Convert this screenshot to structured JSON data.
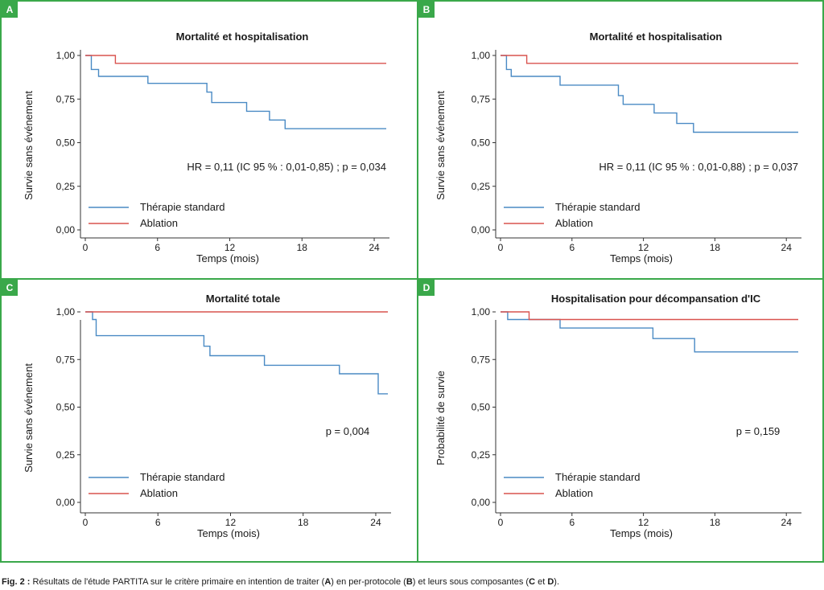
{
  "chart_data": [
    {
      "id": "A",
      "type": "line",
      "title": "Mortalité et hospitalisation",
      "xlabel": "Temps (mois)",
      "ylabel": "Survie sans événement",
      "xticks": [
        "0",
        "6",
        "12",
        "18",
        "24"
      ],
      "yticks": [
        "0,00",
        "0,25",
        "0,50",
        "0,75",
        "1,00"
      ],
      "xlim": [
        0,
        25
      ],
      "ylim": [
        0,
        1
      ],
      "annotation": "HR = 0,11 (IC 95 % : 0,01-0,85) ; p = 0,034",
      "series": [
        {
          "name": "Thérapie standard",
          "color": "#4a8ac4",
          "x": [
            0,
            0.5,
            0.5,
            1.1,
            1.1,
            5.2,
            5.2,
            10.1,
            10.1,
            10.5,
            10.5,
            13.4,
            13.4,
            15.3,
            15.3,
            16.6,
            16.6,
            25
          ],
          "y": [
            1,
            1,
            0.92,
            0.92,
            0.88,
            0.88,
            0.84,
            0.84,
            0.79,
            0.79,
            0.73,
            0.73,
            0.68,
            0.68,
            0.63,
            0.63,
            0.58,
            0.58
          ]
        },
        {
          "name": "Ablation",
          "color": "#d9534f",
          "x": [
            0,
            2.5,
            2.5,
            25
          ],
          "y": [
            1,
            1,
            0.955,
            0.955
          ]
        }
      ]
    },
    {
      "id": "B",
      "type": "line",
      "title": "Mortalité et hospitalisation",
      "xlabel": "Temps (mois)",
      "ylabel": "Survie sans événement",
      "xticks": [
        "0",
        "6",
        "12",
        "18",
        "24"
      ],
      "yticks": [
        "0,00",
        "0,25",
        "0,50",
        "0,75",
        "1,00"
      ],
      "xlim": [
        0,
        25
      ],
      "ylim": [
        0,
        1
      ],
      "annotation": "HR = 0,11 (IC 95 % : 0,01-0,88) ; p = 0,037",
      "series": [
        {
          "name": "Thérapie standard",
          "color": "#4a8ac4",
          "x": [
            0,
            0.5,
            0.5,
            0.9,
            0.9,
            5.0,
            5.0,
            9.9,
            9.9,
            10.3,
            10.3,
            12.9,
            12.9,
            14.8,
            14.8,
            16.2,
            16.2,
            25
          ],
          "y": [
            1,
            1,
            0.92,
            0.92,
            0.88,
            0.88,
            0.83,
            0.83,
            0.77,
            0.77,
            0.72,
            0.72,
            0.67,
            0.67,
            0.61,
            0.61,
            0.56,
            0.56
          ]
        },
        {
          "name": "Ablation",
          "color": "#d9534f",
          "x": [
            0,
            2.2,
            2.2,
            25
          ],
          "y": [
            1,
            1,
            0.955,
            0.955
          ]
        }
      ]
    },
    {
      "id": "C",
      "type": "line",
      "title": "Mortalité totale",
      "xlabel": "Temps (mois)",
      "ylabel": "Survie sans événement",
      "xticks": [
        "0",
        "6",
        "12",
        "18",
        "24"
      ],
      "yticks": [
        "0,00",
        "0,25",
        "0,50",
        "0,75",
        "1,00"
      ],
      "xlim": [
        0,
        25
      ],
      "ylim": [
        0,
        1
      ],
      "annotation": "p = 0,004",
      "series": [
        {
          "name": "Thérapie standard",
          "color": "#4a8ac4",
          "x": [
            0,
            0.6,
            0.6,
            0.9,
            0.9,
            9.8,
            9.8,
            10.3,
            10.3,
            14.8,
            14.8,
            21.0,
            21.0,
            24.2,
            24.2,
            25
          ],
          "y": [
            1,
            1,
            0.96,
            0.96,
            0.875,
            0.875,
            0.82,
            0.82,
            0.77,
            0.77,
            0.72,
            0.72,
            0.675,
            0.675,
            0.57,
            0.57
          ]
        },
        {
          "name": "Ablation",
          "color": "#d9534f",
          "x": [
            0,
            25
          ],
          "y": [
            1,
            1
          ]
        }
      ]
    },
    {
      "id": "D",
      "type": "line",
      "title": "Hospitalisation pour décompansation d'IC",
      "xlabel": "Temps (mois)",
      "ylabel": "Probabilité de survie",
      "xticks": [
        "0",
        "6",
        "12",
        "18",
        "24"
      ],
      "yticks": [
        "0,00",
        "0,25",
        "0,50",
        "0,75",
        "1,00"
      ],
      "xlim": [
        0,
        25
      ],
      "ylim": [
        0,
        1
      ],
      "annotation": "p = 0,159",
      "series": [
        {
          "name": "Thérapie standard",
          "color": "#4a8ac4",
          "x": [
            0,
            0.6,
            0.6,
            5.0,
            5.0,
            12.8,
            12.8,
            16.3,
            16.3,
            25
          ],
          "y": [
            1,
            1,
            0.96,
            0.96,
            0.915,
            0.915,
            0.86,
            0.86,
            0.79,
            0.79
          ]
        },
        {
          "name": "Ablation",
          "color": "#d9534f",
          "x": [
            0,
            2.4,
            2.4,
            25
          ],
          "y": [
            1,
            1,
            0.96,
            0.96
          ]
        }
      ]
    }
  ],
  "caption": {
    "prefix": "Fig. 2 :",
    "part1": " Résultats de l'étude PARTITA sur le critère primaire en intention de traiter (",
    "letterA": "A",
    "part2": ") en per-protocole (",
    "letterB": "B",
    "part3": ") et leurs sous composantes (",
    "letterC": "C",
    "part4": " et ",
    "letterD": "D",
    "part5": ")."
  }
}
